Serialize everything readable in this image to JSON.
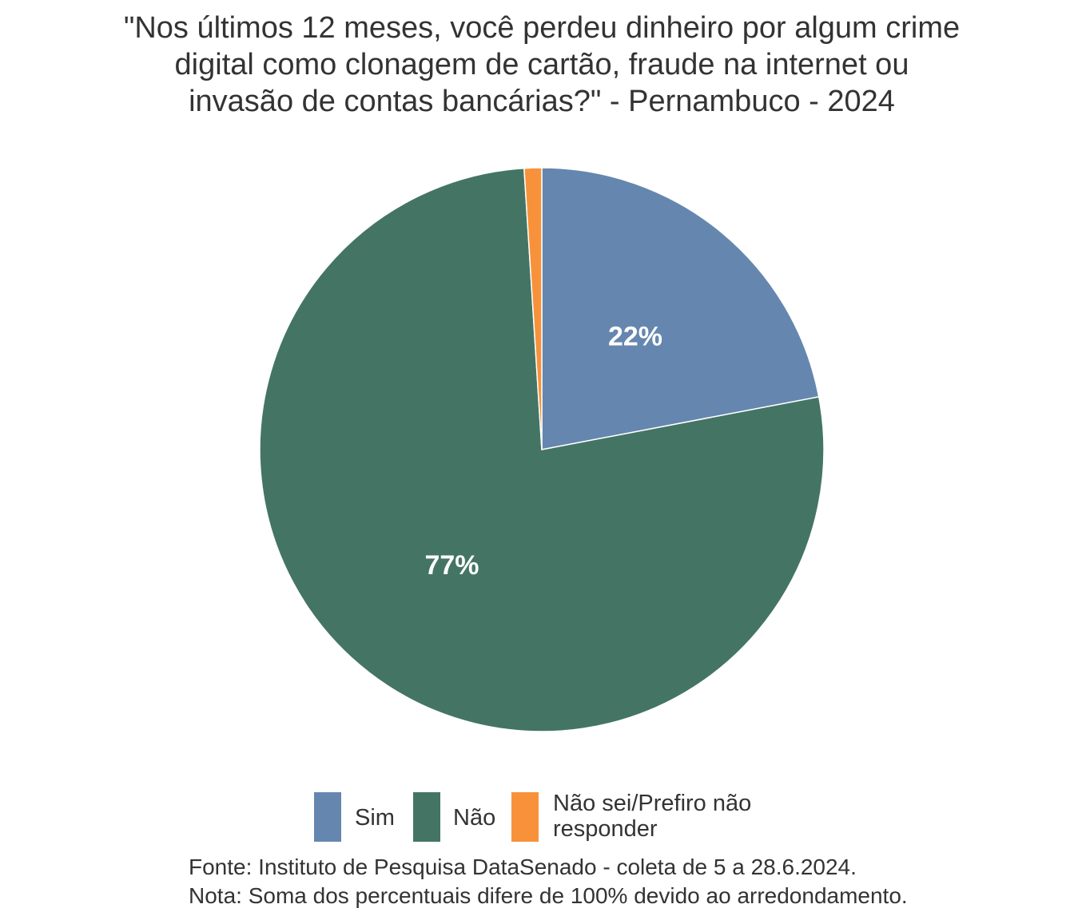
{
  "chart_data": {
    "type": "pie",
    "title_lines": [
      "\"Nos últimos 12 meses, você perdeu dinheiro por algum crime",
      "digital como clonagem de cartão, fraude na internet ou",
      "invasão de contas bancárias?\" - Pernambuco - 2024"
    ],
    "slices": [
      {
        "name": "Sim",
        "value": 22,
        "label": "22%",
        "color": "#6586AF"
      },
      {
        "name": "Não",
        "value": 77,
        "label": "77%",
        "color": "#447564"
      },
      {
        "name": "Não sei/Prefiro não responder",
        "value": 1,
        "label": "",
        "color": "#F7923A"
      }
    ],
    "legend": {
      "position": "bottom",
      "items": [
        {
          "name": "Sim",
          "color": "#6586AF"
        },
        {
          "name": "Não",
          "color": "#447564"
        },
        {
          "name_lines": [
            "Não sei/Prefiro não",
            "responder"
          ],
          "color": "#F7923A"
        }
      ]
    },
    "caption_lines": [
      "Fonte: Instituto de Pesquisa DataSenado - coleta de 5 a 28.6.2024.",
      "Nota: Soma dos percentuais difere de 100% devido ao arredondamento."
    ]
  }
}
